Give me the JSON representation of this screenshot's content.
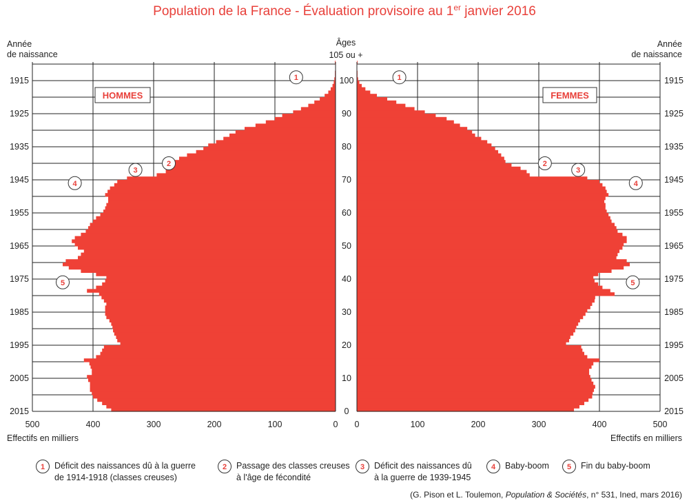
{
  "chart_data": {
    "type": "bar",
    "orientation": "horizontal-pyramid",
    "title_main": "Population de la France - Évaluation provisoire au 1",
    "title_sup": "er",
    "title_end": " janvier 2016",
    "left_label_line1": "Année",
    "left_label_line2": "de naissance",
    "right_label_line1": "Année",
    "right_label_line2": "de naissance",
    "center_label_line1": "Âges",
    "center_label_line2": "105 ou +",
    "men_label": "HOMMES",
    "women_label": "FEMMES",
    "xlabel_left": "Effectifs en milliers",
    "xlabel_right": "Effectifs en milliers",
    "xlim": [
      0,
      500
    ],
    "xticks_left": [
      "500",
      "400",
      "300",
      "200",
      "100",
      "0"
    ],
    "xticks_right": [
      "0",
      "100",
      "200",
      "300",
      "400",
      "500"
    ],
    "age_ticks": [
      "0",
      "10",
      "20",
      "30",
      "40",
      "50",
      "60",
      "70",
      "80",
      "90",
      "100"
    ],
    "birth_year_ticks": [
      "2015",
      "2005",
      "1995",
      "1985",
      "1975",
      "1965",
      "1955",
      "1945",
      "1935",
      "1925",
      "1915"
    ],
    "ages": [
      0,
      1,
      2,
      3,
      4,
      5,
      6,
      7,
      8,
      9,
      10,
      11,
      12,
      13,
      14,
      15,
      16,
      17,
      18,
      19,
      20,
      21,
      22,
      23,
      24,
      25,
      26,
      27,
      28,
      29,
      30,
      31,
      32,
      33,
      34,
      35,
      36,
      37,
      38,
      39,
      40,
      41,
      42,
      43,
      44,
      45,
      46,
      47,
      48,
      49,
      50,
      51,
      52,
      53,
      54,
      55,
      56,
      57,
      58,
      59,
      60,
      61,
      62,
      63,
      64,
      65,
      66,
      67,
      68,
      69,
      70,
      71,
      72,
      73,
      74,
      75,
      76,
      77,
      78,
      79,
      80,
      81,
      82,
      83,
      84,
      85,
      86,
      87,
      88,
      89,
      90,
      91,
      92,
      93,
      94,
      95,
      96,
      97,
      98,
      99,
      100,
      101,
      102,
      103,
      104,
      105
    ],
    "series": [
      {
        "name": "HOMMES",
        "values": [
          370,
          378,
          385,
          393,
          400,
          402,
          405,
          405,
          405,
          408,
          410,
          402,
          402,
          404,
          406,
          415,
          395,
          388,
          385,
          382,
          355,
          360,
          362,
          365,
          367,
          368,
          370,
          373,
          378,
          380,
          380,
          380,
          378,
          382,
          386,
          390,
          410,
          395,
          385,
          380,
          378,
          395,
          420,
          440,
          450,
          445,
          425,
          420,
          415,
          425,
          430,
          435,
          430,
          420,
          412,
          408,
          405,
          400,
          395,
          388,
          383,
          380,
          378,
          375,
          375,
          380,
          376,
          372,
          365,
          360,
          344,
          295,
          280,
          280,
          275,
          270,
          258,
          245,
          230,
          218,
          210,
          197,
          185,
          175,
          165,
          150,
          132,
          115,
          100,
          88,
          70,
          57,
          45,
          35,
          26,
          18,
          12,
          8,
          5,
          3,
          2,
          1,
          1,
          0,
          0,
          1
        ]
      },
      {
        "name": "FEMMES",
        "values": [
          358,
          367,
          375,
          382,
          388,
          389,
          391,
          393,
          390,
          387,
          385,
          383,
          383,
          387,
          390,
          400,
          380,
          375,
          372,
          370,
          345,
          350,
          352,
          357,
          360,
          362,
          365,
          368,
          373,
          377,
          380,
          385,
          388,
          392,
          393,
          425,
          418,
          405,
          398,
          392,
          390,
          398,
          420,
          440,
          450,
          445,
          428,
          430,
          433,
          438,
          440,
          445,
          445,
          438,
          430,
          428,
          425,
          420,
          418,
          415,
          412,
          410,
          410,
          408,
          410,
          415,
          412,
          410,
          405,
          400,
          380,
          285,
          280,
          270,
          255,
          245,
          243,
          238,
          233,
          228,
          222,
          215,
          205,
          195,
          190,
          182,
          170,
          160,
          148,
          130,
          112,
          95,
          80,
          65,
          50,
          33,
          22,
          14,
          8,
          4,
          2,
          1,
          1,
          0,
          0,
          1
        ]
      }
    ],
    "legend": [
      {
        "num": "1",
        "line1": "Déficit des naissances dû à la guerre",
        "line2": "de 1914-1918 (classes creuses)"
      },
      {
        "num": "2",
        "line1": "Passage des classes creuses",
        "line2": "à l'âge de fécondité"
      },
      {
        "num": "3",
        "line1": "Déficit des naissances dû",
        "line2": "à la guerre de 1939-1945"
      },
      {
        "num": "4",
        "line1": "Baby-boom",
        "line2": ""
      },
      {
        "num": "5",
        "line1": "Fin du baby-boom",
        "line2": ""
      }
    ],
    "markers": [
      {
        "num": "1",
        "side": "left",
        "age": 101,
        "value": 65
      },
      {
        "num": "1",
        "side": "right",
        "age": 101,
        "value": 70
      },
      {
        "num": "2",
        "side": "left",
        "age": 75,
        "value": 275
      },
      {
        "num": "2",
        "side": "right",
        "age": 75,
        "value": 310
      },
      {
        "num": "3",
        "side": "left",
        "age": 73,
        "value": 330
      },
      {
        "num": "3",
        "side": "right",
        "age": 73,
        "value": 365
      },
      {
        "num": "4",
        "side": "left",
        "age": 69,
        "value": 430
      },
      {
        "num": "4",
        "side": "right",
        "age": 69,
        "value": 460
      },
      {
        "num": "5",
        "side": "left",
        "age": 39,
        "value": 450
      },
      {
        "num": "5",
        "side": "right",
        "age": 39,
        "value": 455
      }
    ],
    "source_prefix": "(G. Pison et L. Toulemon, ",
    "source_italic": "Population & Sociétés",
    "source_suffix": ", n° 531, Ined, mars 2016)",
    "bar_color": "#ef4136",
    "accent_color": "#e8403a"
  }
}
